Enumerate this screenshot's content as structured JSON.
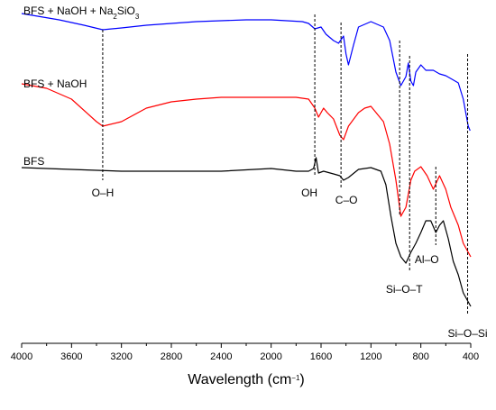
{
  "chart_data": {
    "type": "line",
    "xlabel": "Wavelength (cm",
    "xlabel_sup": "−1",
    "xlabel_close": ")",
    "xlim": [
      4000,
      400
    ],
    "x_ticks": [
      "4000",
      "3600",
      "3200",
      "2800",
      "2400",
      "2000",
      "1600",
      "1200",
      "800",
      "400"
    ],
    "grid": false,
    "series": [
      {
        "name": "BFS + NaOH + Na2SiO3",
        "label_parts": [
          "BFS + NaOH + Na",
          "2",
          "SiO",
          "3"
        ],
        "color": "#0000ff",
        "points": [
          [
            4000,
            15
          ],
          [
            3700,
            22
          ],
          [
            3500,
            28
          ],
          [
            3350,
            33
          ],
          [
            3200,
            31
          ],
          [
            3000,
            28
          ],
          [
            2600,
            24
          ],
          [
            2200,
            22
          ],
          [
            2000,
            22
          ],
          [
            1750,
            24
          ],
          [
            1700,
            26
          ],
          [
            1650,
            32
          ],
          [
            1600,
            30
          ],
          [
            1560,
            38
          ],
          [
            1500,
            45
          ],
          [
            1460,
            48
          ],
          [
            1420,
            40
          ],
          [
            1400,
            60
          ],
          [
            1380,
            72
          ],
          [
            1340,
            50
          ],
          [
            1300,
            30
          ],
          [
            1200,
            24
          ],
          [
            1100,
            30
          ],
          [
            1050,
            45
          ],
          [
            1000,
            80
          ],
          [
            960,
            95
          ],
          [
            920,
            85
          ],
          [
            900,
            70
          ],
          [
            880,
            90
          ],
          [
            860,
            95
          ],
          [
            840,
            80
          ],
          [
            800,
            72
          ],
          [
            760,
            78
          ],
          [
            700,
            78
          ],
          [
            650,
            82
          ],
          [
            600,
            84
          ],
          [
            550,
            88
          ],
          [
            500,
            92
          ],
          [
            460,
            110
          ],
          [
            420,
            140
          ],
          [
            405,
            145
          ]
        ]
      },
      {
        "name": "BFS + NaOH",
        "label_parts": [
          "BFS + NaOH"
        ],
        "color": "#ff0000",
        "points": [
          [
            4000,
            93
          ],
          [
            3800,
            98
          ],
          [
            3600,
            110
          ],
          [
            3400,
            135
          ],
          [
            3350,
            140
          ],
          [
            3200,
            135
          ],
          [
            3000,
            120
          ],
          [
            2800,
            113
          ],
          [
            2600,
            110
          ],
          [
            2400,
            108
          ],
          [
            2200,
            108
          ],
          [
            2000,
            108
          ],
          [
            1800,
            108
          ],
          [
            1700,
            110
          ],
          [
            1650,
            120
          ],
          [
            1620,
            130
          ],
          [
            1580,
            120
          ],
          [
            1550,
            125
          ],
          [
            1500,
            132
          ],
          [
            1450,
            150
          ],
          [
            1420,
            155
          ],
          [
            1380,
            140
          ],
          [
            1300,
            125
          ],
          [
            1250,
            120
          ],
          [
            1200,
            118
          ],
          [
            1100,
            135
          ],
          [
            1050,
            160
          ],
          [
            1000,
            200
          ],
          [
            960,
            240
          ],
          [
            920,
            230
          ],
          [
            880,
            200
          ],
          [
            850,
            190
          ],
          [
            800,
            185
          ],
          [
            750,
            195
          ],
          [
            700,
            210
          ],
          [
            650,
            195
          ],
          [
            600,
            210
          ],
          [
            560,
            230
          ],
          [
            500,
            250
          ],
          [
            460,
            270
          ],
          [
            420,
            280
          ],
          [
            400,
            285
          ]
        ]
      },
      {
        "name": "BFS",
        "label_parts": [
          "BFS"
        ],
        "color": "#000000",
        "points": [
          [
            4000,
            186
          ],
          [
            3600,
            188
          ],
          [
            3200,
            190
          ],
          [
            2800,
            190
          ],
          [
            2400,
            190
          ],
          [
            2000,
            187
          ],
          [
            1800,
            190
          ],
          [
            1700,
            190
          ],
          [
            1660,
            187
          ],
          [
            1640,
            175
          ],
          [
            1620,
            192
          ],
          [
            1580,
            190
          ],
          [
            1500,
            193
          ],
          [
            1450,
            195
          ],
          [
            1420,
            200
          ],
          [
            1380,
            197
          ],
          [
            1300,
            188
          ],
          [
            1200,
            186
          ],
          [
            1120,
            190
          ],
          [
            1080,
            205
          ],
          [
            1040,
            240
          ],
          [
            1000,
            270
          ],
          [
            960,
            285
          ],
          [
            920,
            292
          ],
          [
            880,
            280
          ],
          [
            840,
            270
          ],
          [
            800,
            258
          ],
          [
            760,
            245
          ],
          [
            720,
            245
          ],
          [
            680,
            258
          ],
          [
            650,
            250
          ],
          [
            620,
            245
          ],
          [
            580,
            265
          ],
          [
            540,
            290
          ],
          [
            500,
            305
          ],
          [
            460,
            325
          ],
          [
            420,
            335
          ],
          [
            400,
            340
          ]
        ]
      }
    ],
    "markers": [
      {
        "x": 3350,
        "label": "O–H"
      },
      {
        "x": 1650,
        "label": "OH"
      },
      {
        "x": 1440,
        "label": "C–O"
      },
      {
        "x": 970,
        "label": ""
      },
      {
        "x": 890,
        "label": "Si–O–T"
      },
      {
        "x": 680,
        "label": "Al–O"
      },
      {
        "x": 425,
        "label": "Si–O–Si"
      }
    ]
  }
}
